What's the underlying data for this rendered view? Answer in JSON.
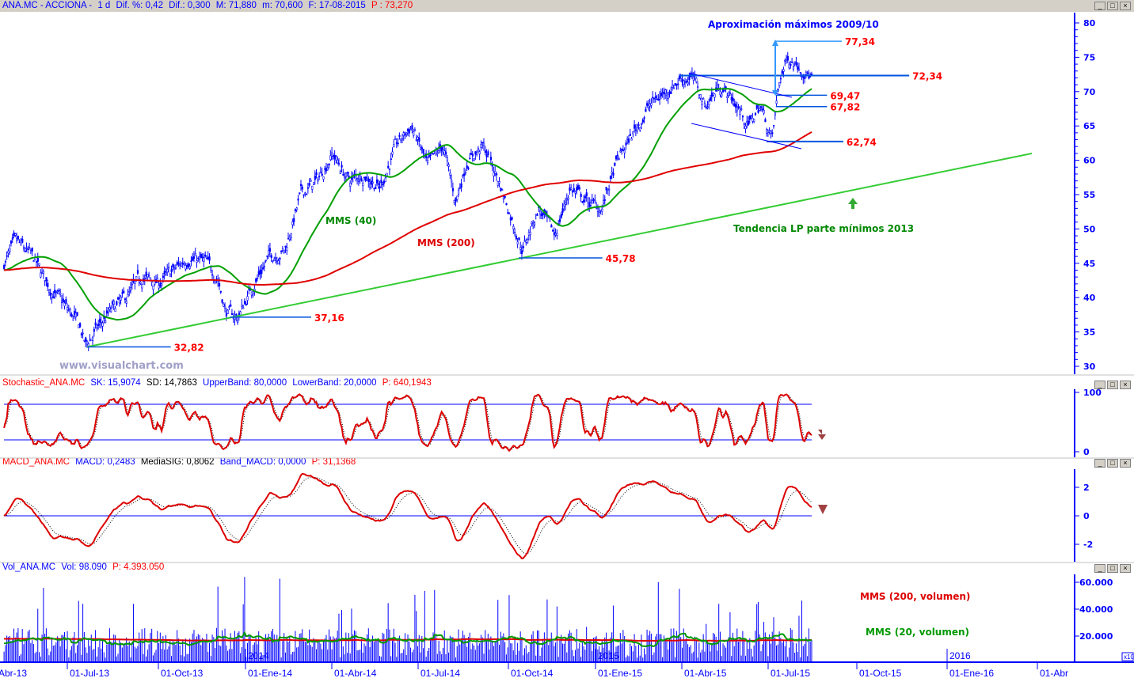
{
  "header": {
    "symbol": "ANA.MC - ACCIONA -",
    "period": "1 d",
    "dif_pct": "Dif. %: 0,42",
    "dif": "Dif.: 0,300",
    "max": "M: 71,880",
    "min": "m: 70,600",
    "date": "F: 17-08-2015",
    "price": "P : 73,270"
  },
  "stochastic_header": {
    "name": "Stochastic_ANA.MC",
    "sk": "SK: 15,9074",
    "sd": "SD: 14,7863",
    "upper": "UpperBand: 80,0000",
    "lower": "LowerBand: 20,0000",
    "p": "P: 640,1943"
  },
  "macd_header": {
    "name": "MACD_ANA.MC",
    "macd": "MACD: 0,2483",
    "signal": "MediaSIG: 0,8062",
    "band": "Band_MACD: 0,0000",
    "p": "P: 31,1368"
  },
  "volume_header": {
    "name": "Vol_ANA.MC",
    "vol": "Vol: 98.090",
    "p": "P: 4.393.050"
  },
  "window_buttons": {
    "minimize": "_",
    "maximize": "□",
    "close": "×"
  },
  "watermark": "www.visualchart.com",
  "colors": {
    "price": "#0000ff",
    "mms40": "#00a000",
    "mms200": "#e00000",
    "trend": "#33cc33",
    "level": "#0055dd",
    "label": "#ff0000"
  },
  "chart_data": [
    {
      "type": "line",
      "title": "ANA.MC - ACCIONA daily",
      "x_unit": "months since 01-Abr-13",
      "ylim": [
        29,
        82
      ],
      "y_ticks": [
        "30",
        "35",
        "40",
        "45",
        "50",
        "55",
        "60",
        "65",
        "70",
        "75",
        "80"
      ],
      "price_path": [
        [
          0.86,
          45
        ],
        [
          1.26,
          48
        ],
        [
          1.79,
          46
        ],
        [
          2.33,
          42
        ],
        [
          2.87,
          39
        ],
        [
          3.4,
          36
        ],
        [
          3.62,
          33
        ],
        [
          3.94,
          35
        ],
        [
          4.47,
          38
        ],
        [
          5.01,
          40
        ],
        [
          5.55,
          43
        ],
        [
          6.08,
          42
        ],
        [
          6.62,
          44
        ],
        [
          7.15,
          46
        ],
        [
          7.69,
          45
        ],
        [
          8.09,
          43
        ],
        [
          8.36,
          38
        ],
        [
          8.76,
          37
        ],
        [
          9.3,
          42
        ],
        [
          9.83,
          46
        ],
        [
          10.37,
          47
        ],
        [
          10.9,
          55
        ],
        [
          11.44,
          57
        ],
        [
          11.97,
          61
        ],
        [
          12.51,
          57
        ],
        [
          13.05,
          58
        ],
        [
          13.58,
          56
        ],
        [
          14.12,
          62
        ],
        [
          14.65,
          65
        ],
        [
          15.19,
          59
        ],
        [
          15.72,
          62
        ],
        [
          16.13,
          54
        ],
        [
          16.53,
          60
        ],
        [
          17.06,
          62
        ],
        [
          17.6,
          57
        ],
        [
          18.0,
          52
        ],
        [
          18.4,
          47
        ],
        [
          18.94,
          53
        ],
        [
          19.48,
          49
        ],
        [
          20.01,
          56
        ],
        [
          20.55,
          54
        ],
        [
          21.08,
          53
        ],
        [
          21.62,
          60
        ],
        [
          22.15,
          64
        ],
        [
          22.69,
          68
        ],
        [
          23.23,
          70
        ],
        [
          23.76,
          72
        ],
        [
          24.16,
          72
        ],
        [
          24.57,
          68
        ],
        [
          25.1,
          71
        ],
        [
          25.64,
          68
        ],
        [
          26.04,
          65
        ],
        [
          26.44,
          68
        ],
        [
          26.84,
          63
        ],
        [
          27.11,
          72
        ],
        [
          27.38,
          75
        ],
        [
          27.78,
          74
        ],
        [
          28.18,
          72
        ]
      ],
      "series": [
        {
          "name": "MMS (40)",
          "period": 40
        },
        {
          "name": "MMS (200)",
          "period": 200
        }
      ],
      "levels": [
        {
          "value": 32.82,
          "label": "32,82",
          "from": 3.69,
          "to": 6.5
        },
        {
          "value": 37.16,
          "label": "37,16",
          "from": 8.5,
          "to": 11.25
        },
        {
          "value": 45.78,
          "label": "45,78",
          "from": 18.27,
          "to": 21.1
        },
        {
          "value": 62.74,
          "label": "62,74",
          "from": 26.65,
          "to": 29.25
        },
        {
          "value": 72.34,
          "label": "72,34",
          "from": 23.71,
          "to": 31.48
        },
        {
          "value": 77.34,
          "label": "77,34",
          "from": 26.92,
          "to": 29.2
        },
        {
          "value": 69.47,
          "label": "69,47",
          "from": 26.97,
          "to": 28.7
        },
        {
          "value": 67.82,
          "label": "67,82",
          "from": 26.97,
          "to": 28.7
        }
      ],
      "annotations": {
        "approx": "Aproximación máximos 2009/10",
        "mms40": "MMS (40)",
        "mms200": "MMS (200)",
        "trend": "Tendencia LP parte mínimos 2013"
      },
      "trendline": [
        [
          3.67,
          32.82
        ],
        [
          35.63,
          61
        ]
      ]
    },
    {
      "type": "line",
      "title": "Stochastic",
      "ylim": [
        0,
        100
      ],
      "y_ticks": [
        "0",
        "100"
      ],
      "bands": [
        80,
        20
      ]
    },
    {
      "type": "line",
      "title": "MACD",
      "ylim": [
        -3,
        3
      ],
      "y_ticks": [
        "-2",
        "0",
        "2"
      ]
    },
    {
      "type": "bar",
      "title": "Volume",
      "ylim": [
        0,
        65000
      ],
      "y_ticks": [
        "20.000",
        "40.000",
        "60.000"
      ],
      "scale_badge": "x10",
      "series_labels": {
        "ma200": "MMS (200, volumen)",
        "ma20": "MMS (20, volumen)"
      },
      "year_marks": [
        "2014",
        "2015",
        "2016"
      ]
    }
  ],
  "x_axis": {
    "labels": [
      "Abr-13",
      "01-Jul-13",
      "01-Oct-13",
      "01-Ene-14",
      "01-Abr-14",
      "01-Jul-14",
      "01-Oct-14",
      "01-Ene-15",
      "01-Abr-15",
      "01-Jul-15",
      "01-Oct-15",
      "01-Ene-16",
      "01-Abr"
    ]
  }
}
